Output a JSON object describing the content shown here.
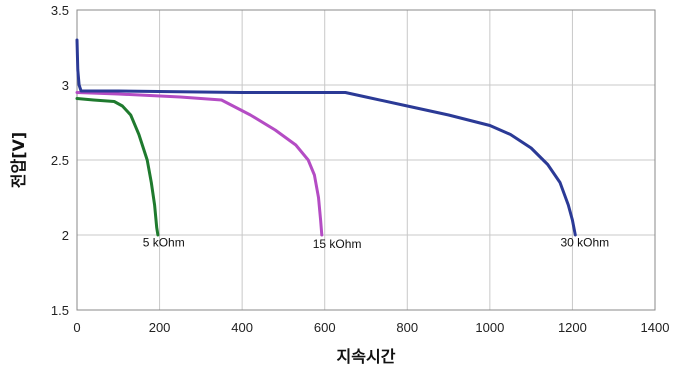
{
  "chart_data": {
    "type": "line",
    "title": "",
    "xlabel": "지속시간",
    "ylabel": "전압[V]",
    "xlim": [
      0,
      1400
    ],
    "ylim": [
      1.5,
      3.5
    ],
    "xticks": [
      0,
      200,
      400,
      600,
      800,
      1000,
      1200,
      1400
    ],
    "yticks": [
      1.5,
      2,
      2.5,
      3,
      3.5
    ],
    "xtick_labels": [
      "0",
      "200",
      "400",
      "600",
      "800",
      "1000",
      "1200",
      "1400"
    ],
    "ytick_labels": [
      "1.5",
      "2",
      "2.5",
      "3",
      "3.5"
    ],
    "grid": true,
    "legend": "none",
    "series": [
      {
        "name": "5 kOhm",
        "color": "#1f7a2e",
        "points": [
          [
            0,
            2.91
          ],
          [
            40,
            2.9
          ],
          [
            90,
            2.89
          ],
          [
            110,
            2.86
          ],
          [
            130,
            2.8
          ],
          [
            150,
            2.67
          ],
          [
            170,
            2.5
          ],
          [
            180,
            2.35
          ],
          [
            188,
            2.2
          ],
          [
            193,
            2.05
          ],
          [
            196,
            2.0
          ]
        ]
      },
      {
        "name": "15 kOhm",
        "color": "#b44cc4",
        "points": [
          [
            0,
            2.95
          ],
          [
            100,
            2.94
          ],
          [
            250,
            2.92
          ],
          [
            350,
            2.9
          ],
          [
            420,
            2.8
          ],
          [
            480,
            2.7
          ],
          [
            530,
            2.6
          ],
          [
            560,
            2.5
          ],
          [
            575,
            2.4
          ],
          [
            585,
            2.25
          ],
          [
            590,
            2.1
          ],
          [
            593,
            2.0
          ]
        ]
      },
      {
        "name": "30 kOhm",
        "color": "#2b3a96",
        "points": [
          [
            0,
            3.3
          ],
          [
            2,
            3.1
          ],
          [
            5,
            3.0
          ],
          [
            10,
            2.96
          ],
          [
            100,
            2.96
          ],
          [
            400,
            2.95
          ],
          [
            650,
            2.95
          ],
          [
            700,
            2.92
          ],
          [
            800,
            2.86
          ],
          [
            900,
            2.8
          ],
          [
            1000,
            2.73
          ],
          [
            1050,
            2.67
          ],
          [
            1100,
            2.58
          ],
          [
            1140,
            2.47
          ],
          [
            1170,
            2.35
          ],
          [
            1190,
            2.2
          ],
          [
            1200,
            2.1
          ],
          [
            1207,
            2.0
          ]
        ]
      }
    ],
    "annotations": [
      {
        "text": "5 kOhm",
        "x": 210,
        "y": 1.95
      },
      {
        "text": "15 kOhm",
        "x": 630,
        "y": 1.94
      },
      {
        "text": "30 kOhm",
        "x": 1230,
        "y": 1.95
      }
    ]
  }
}
